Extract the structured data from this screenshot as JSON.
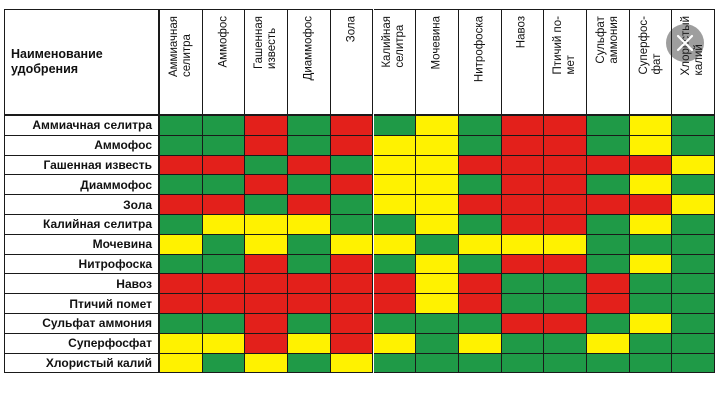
{
  "table": {
    "corner_label": "Наименование\nудобрения",
    "columns": [
      "Аммиачная\nселитра",
      "Аммофос",
      "Гашенная\nизвесть",
      "Диаммофос",
      "Зола",
      "Калийная\nселитра",
      "Мочевина",
      "Нитрофоска",
      "Навоз",
      "Птичий по-\nмет",
      "Сульфат\nаммония",
      "Суперфос-\nфат",
      "Хлористый\nкалий"
    ],
    "rows": [
      "Аммиачная селитра",
      "Аммофос",
      "Гашенная известь",
      "Диаммофос",
      "Зола",
      "Калийная селитра",
      "Мочевина",
      "Нитрофоска",
      "Навоз",
      "Птичий помет",
      "Сульфат аммония",
      "Суперфосфат",
      "Хлористый калий"
    ],
    "legend_colors": {
      "G": "#1f9a47",
      "Y": "#fff200",
      "R": "#e3201b"
    },
    "cells": [
      [
        "G",
        "G",
        "R",
        "G",
        "R",
        "G",
        "Y",
        "G",
        "R",
        "R",
        "G",
        "Y",
        "G"
      ],
      [
        "G",
        "G",
        "R",
        "G",
        "R",
        "Y",
        "Y",
        "G",
        "R",
        "R",
        "G",
        "Y",
        "G"
      ],
      [
        "R",
        "R",
        "G",
        "R",
        "G",
        "Y",
        "Y",
        "R",
        "R",
        "R",
        "R",
        "R",
        "Y"
      ],
      [
        "G",
        "G",
        "R",
        "G",
        "R",
        "Y",
        "Y",
        "G",
        "R",
        "R",
        "G",
        "Y",
        "G"
      ],
      [
        "R",
        "R",
        "G",
        "R",
        "G",
        "Y",
        "Y",
        "R",
        "R",
        "R",
        "R",
        "R",
        "Y"
      ],
      [
        "G",
        "Y",
        "Y",
        "Y",
        "G",
        "G",
        "Y",
        "G",
        "R",
        "R",
        "G",
        "Y",
        "G"
      ],
      [
        "Y",
        "G",
        "Y",
        "G",
        "Y",
        "Y",
        "G",
        "Y",
        "Y",
        "Y",
        "G",
        "G",
        "G"
      ],
      [
        "G",
        "G",
        "R",
        "G",
        "R",
        "G",
        "Y",
        "G",
        "R",
        "R",
        "G",
        "Y",
        "G"
      ],
      [
        "R",
        "R",
        "R",
        "R",
        "R",
        "R",
        "Y",
        "R",
        "G",
        "G",
        "R",
        "G",
        "G"
      ],
      [
        "R",
        "R",
        "R",
        "R",
        "R",
        "R",
        "Y",
        "R",
        "G",
        "G",
        "R",
        "G",
        "G"
      ],
      [
        "G",
        "G",
        "R",
        "G",
        "R",
        "G",
        "G",
        "G",
        "R",
        "R",
        "G",
        "Y",
        "G"
      ],
      [
        "Y",
        "Y",
        "R",
        "Y",
        "R",
        "Y",
        "G",
        "Y",
        "G",
        "G",
        "Y",
        "G",
        "G"
      ],
      [
        "Y",
        "G",
        "Y",
        "G",
        "Y",
        "G",
        "G",
        "G",
        "G",
        "G",
        "G",
        "G",
        "G"
      ]
    ]
  },
  "overlay": {
    "close_icon": "close-icon"
  }
}
